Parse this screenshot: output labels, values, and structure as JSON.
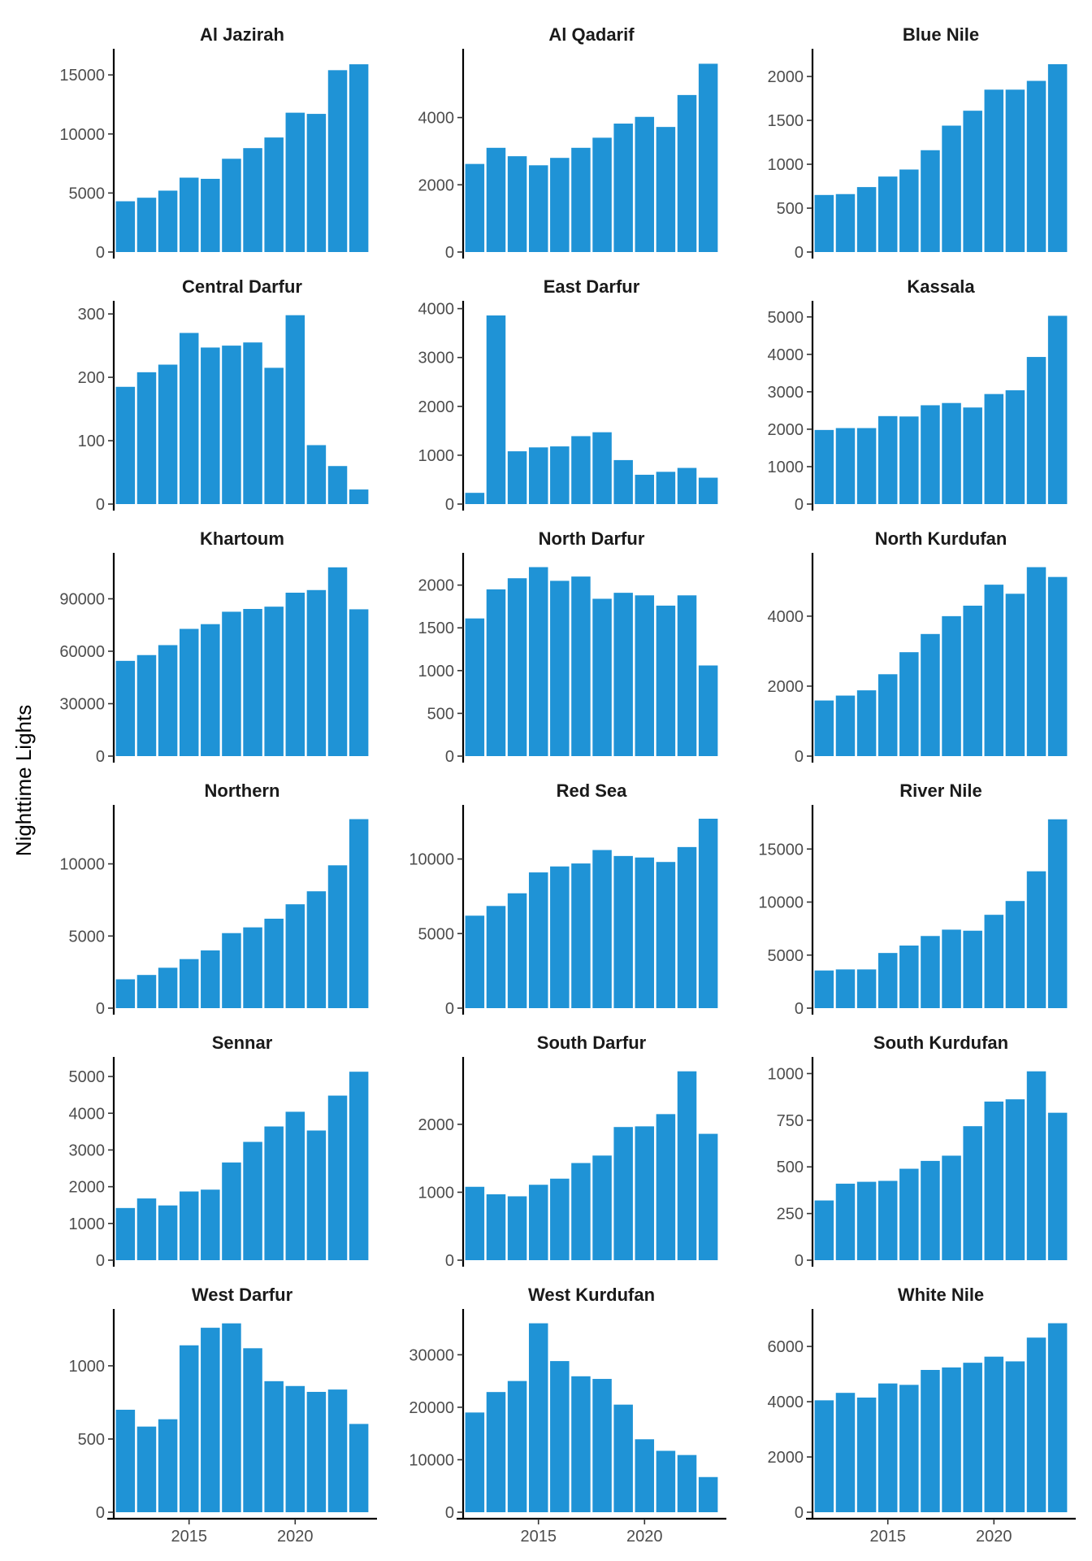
{
  "chart_data": {
    "type": "bar",
    "layout": "facet-grid",
    "ylabel": "Nighttime Lights",
    "xlabel": "",
    "bar_color": "#1f93d6",
    "x": [
      2012,
      2013,
      2014,
      2015,
      2016,
      2017,
      2018,
      2019,
      2020,
      2021,
      2022,
      2023
    ],
    "x_ticks": [
      2015,
      2020
    ],
    "x_tick_labels": [
      "2015",
      "2020"
    ],
    "grid": false,
    "facets": [
      {
        "name": "Al Jazirah",
        "values": [
          4300,
          4600,
          5200,
          6300,
          6200,
          7900,
          8800,
          9700,
          11800,
          11700,
          15400,
          15900
        ],
        "ylim": [
          0,
          16800
        ],
        "yticks": [
          0,
          5000,
          10000,
          15000
        ],
        "ytick_labels": [
          "0",
          "5000",
          "10000",
          "15000"
        ]
      },
      {
        "name": "Al Qadarif",
        "values": [
          2620,
          3100,
          2850,
          2580,
          2800,
          3100,
          3400,
          3820,
          4020,
          3720,
          4670,
          5600
        ],
        "ylim": [
          0,
          5900
        ],
        "yticks": [
          0,
          2000,
          4000
        ],
        "ytick_labels": [
          "0",
          "2000",
          "4000"
        ]
      },
      {
        "name": "Blue Nile",
        "values": [
          650,
          660,
          740,
          860,
          940,
          1160,
          1440,
          1610,
          1850,
          1850,
          1950,
          2140
        ],
        "ylim": [
          0,
          2260
        ],
        "yticks": [
          0,
          500,
          1000,
          1500,
          2000
        ],
        "ytick_labels": [
          "0",
          "500",
          "1000",
          "1500",
          "2000"
        ]
      },
      {
        "name": "Central Darfur",
        "values": [
          185,
          208,
          220,
          270,
          247,
          250,
          255,
          215,
          298,
          93,
          60,
          23
        ],
        "ylim": [
          0,
          313
        ],
        "yticks": [
          0,
          100,
          200,
          300
        ],
        "ytick_labels": [
          "0",
          "100",
          "200",
          "300"
        ]
      },
      {
        "name": "East Darfur",
        "values": [
          230,
          3860,
          1080,
          1160,
          1180,
          1390,
          1470,
          900,
          600,
          660,
          740,
          540
        ],
        "ylim": [
          0,
          4060
        ],
        "yticks": [
          0,
          1000,
          2000,
          3000,
          4000
        ],
        "ytick_labels": [
          "0",
          "1000",
          "2000",
          "3000",
          "4000"
        ]
      },
      {
        "name": "Kassala",
        "values": [
          1980,
          2030,
          2030,
          2350,
          2340,
          2640,
          2700,
          2580,
          2940,
          3040,
          3930,
          5030
        ],
        "ylim": [
          0,
          5300
        ],
        "yticks": [
          0,
          1000,
          2000,
          3000,
          4000,
          5000
        ],
        "ytick_labels": [
          "0",
          "1000",
          "2000",
          "3000",
          "4000",
          "5000"
        ]
      },
      {
        "name": "Khartoum",
        "values": [
          54500,
          57800,
          63500,
          72800,
          75500,
          82600,
          84200,
          85500,
          93500,
          95000,
          108000,
          84000
        ],
        "ylim": [
          0,
          113500
        ],
        "yticks": [
          0,
          30000,
          60000,
          90000
        ],
        "ytick_labels": [
          "0",
          "30000",
          "60000",
          "90000"
        ]
      },
      {
        "name": "North Darfur",
        "values": [
          1610,
          1950,
          2080,
          2210,
          2050,
          2100,
          1840,
          1910,
          1880,
          1760,
          1880,
          1060
        ],
        "ylim": [
          0,
          2320
        ],
        "yticks": [
          0,
          500,
          1000,
          1500,
          2000
        ],
        "ytick_labels": [
          "0",
          "500",
          "1000",
          "1500",
          "2000"
        ]
      },
      {
        "name": "North Kurdufan",
        "values": [
          1590,
          1730,
          1880,
          2340,
          2970,
          3490,
          4000,
          4300,
          4900,
          4640,
          5400,
          5120
        ],
        "ylim": [
          0,
          5670
        ],
        "yticks": [
          0,
          2000,
          4000
        ],
        "ytick_labels": [
          "0",
          "2000",
          "4000"
        ]
      },
      {
        "name": "Northern",
        "values": [
          2000,
          2300,
          2800,
          3400,
          4000,
          5200,
          5600,
          6200,
          7200,
          8100,
          9900,
          13100
        ],
        "ylim": [
          0,
          13750
        ],
        "yticks": [
          0,
          5000,
          10000
        ],
        "ytick_labels": [
          "0",
          "5000",
          "10000"
        ]
      },
      {
        "name": "Red Sea",
        "values": [
          6200,
          6850,
          7700,
          9100,
          9500,
          9700,
          10600,
          10200,
          10100,
          9800,
          10800,
          12700
        ],
        "ylim": [
          0,
          13300
        ],
        "yticks": [
          0,
          5000,
          10000
        ],
        "ytick_labels": [
          "0",
          "5000",
          "10000"
        ]
      },
      {
        "name": "River Nile",
        "values": [
          3550,
          3650,
          3650,
          5200,
          5900,
          6800,
          7400,
          7300,
          8800,
          10100,
          12900,
          17800
        ],
        "ylim": [
          0,
          18700
        ],
        "yticks": [
          0,
          5000,
          10000,
          15000
        ],
        "ytick_labels": [
          "0",
          "5000",
          "10000",
          "15000"
        ]
      },
      {
        "name": "Sennar",
        "values": [
          1420,
          1680,
          1490,
          1870,
          1920,
          2660,
          3220,
          3640,
          4040,
          3530,
          4480,
          5130
        ],
        "ylim": [
          0,
          5400
        ],
        "yticks": [
          0,
          1000,
          2000,
          3000,
          4000,
          5000
        ],
        "ytick_labels": [
          "0",
          "1000",
          "2000",
          "3000",
          "4000",
          "5000"
        ]
      },
      {
        "name": "South Darfur",
        "values": [
          1080,
          970,
          940,
          1110,
          1200,
          1430,
          1540,
          1960,
          1970,
          2150,
          2780,
          1860
        ],
        "ylim": [
          0,
          2920
        ],
        "yticks": [
          0,
          1000,
          2000
        ],
        "ytick_labels": [
          "0",
          "1000",
          "2000"
        ]
      },
      {
        "name": "South Kurdufan",
        "values": [
          320,
          410,
          420,
          425,
          490,
          532,
          560,
          718,
          850,
          862,
          1012,
          790
        ],
        "ylim": [
          0,
          1063
        ],
        "yticks": [
          0,
          250,
          500,
          750,
          1000
        ],
        "ytick_labels": [
          "0",
          "250",
          "500",
          "750",
          "1000"
        ]
      },
      {
        "name": "West Darfur",
        "values": [
          700,
          585,
          635,
          1140,
          1260,
          1290,
          1120,
          895,
          862,
          822,
          838,
          603
        ],
        "ylim": [
          0,
          1355
        ],
        "yticks": [
          0,
          500,
          1000
        ],
        "ytick_labels": [
          "0",
          "500",
          "1000"
        ]
      },
      {
        "name": "West Kurdufan",
        "values": [
          19000,
          22900,
          25000,
          36000,
          28800,
          25900,
          25400,
          20500,
          13900,
          11700,
          10900,
          6700
        ],
        "ylim": [
          0,
          37800
        ],
        "yticks": [
          0,
          10000,
          20000,
          30000
        ],
        "ytick_labels": [
          "0",
          "10000",
          "20000",
          "30000"
        ]
      },
      {
        "name": "White Nile",
        "values": [
          4050,
          4320,
          4150,
          4660,
          4610,
          5150,
          5240,
          5410,
          5630,
          5460,
          6320,
          6840
        ],
        "ylim": [
          0,
          7180
        ],
        "yticks": [
          0,
          2000,
          4000,
          6000
        ],
        "ytick_labels": [
          "0",
          "2000",
          "4000",
          "6000"
        ]
      }
    ]
  }
}
